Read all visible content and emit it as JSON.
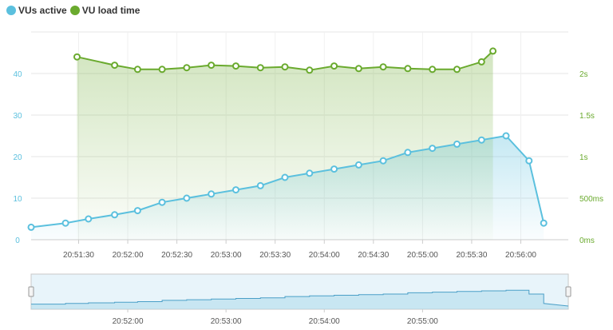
{
  "legend": {
    "vus_label": "VUs active",
    "load_label": "VU load time"
  },
  "colors": {
    "vus": "#5bc0de",
    "load": "#6aaa2e",
    "grid": "#e6e6e6",
    "axis_text": "#555555",
    "navigator_fill": "#d9edf7"
  },
  "chart_data": {
    "type": "line",
    "x_unit": "time",
    "xlim": [
      "20:51:01",
      "20:56:29"
    ],
    "x_ticks": [
      "20:51:30",
      "20:52:00",
      "20:52:30",
      "20:53:00",
      "20:53:30",
      "20:54:00",
      "20:54:30",
      "20:55:00",
      "20:55:30",
      "20:56:00"
    ],
    "y_left": {
      "ticks": [
        "0",
        "10",
        "20",
        "30",
        "40"
      ],
      "ylim": [
        0,
        50
      ]
    },
    "y_right": {
      "ticks": [
        "0ms",
        "500ms",
        "1s",
        "1.5s",
        "2s"
      ],
      "ylim_ms": [
        0,
        2500
      ]
    },
    "series": [
      {
        "name": "VUs active",
        "axis": "left",
        "x": [
          "20:51:01",
          "20:51:22",
          "20:51:36",
          "20:51:52",
          "20:52:06",
          "20:52:21",
          "20:52:36",
          "20:52:51",
          "20:53:06",
          "20:53:21",
          "20:53:36",
          "20:53:51",
          "20:54:06",
          "20:54:21",
          "20:54:36",
          "20:54:51",
          "20:55:06",
          "20:55:21",
          "20:55:36",
          "20:55:51",
          "20:56:05",
          "20:56:14"
        ],
        "values": [
          3,
          4,
          5,
          6,
          7,
          9,
          10,
          11,
          12,
          13,
          15,
          16,
          17,
          18,
          19,
          21,
          22,
          23,
          24,
          25,
          19,
          4
        ]
      },
      {
        "name": "VU load time",
        "axis": "right",
        "unit": "ms",
        "x": [
          "20:51:29",
          "20:51:52",
          "20:52:06",
          "20:52:21",
          "20:52:36",
          "20:52:51",
          "20:53:06",
          "20:53:21",
          "20:53:36",
          "20:53:51",
          "20:54:06",
          "20:54:21",
          "20:54:36",
          "20:54:51",
          "20:55:06",
          "20:55:21",
          "20:55:36",
          "20:55:43"
        ],
        "values": [
          2200,
          2100,
          2050,
          2050,
          2070,
          2100,
          2090,
          2070,
          2080,
          2040,
          2090,
          2060,
          2080,
          2060,
          2050,
          2050,
          2140,
          2270
        ]
      }
    ],
    "navigator": {
      "x_ticks": [
        "20:52:00",
        "20:53:00",
        "20:54:00",
        "20:55:00"
      ]
    }
  }
}
